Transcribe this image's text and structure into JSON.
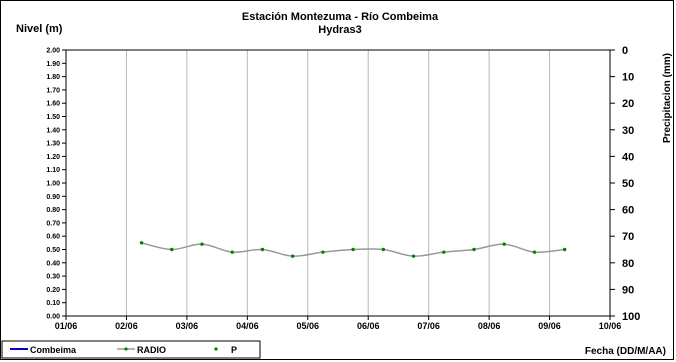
{
  "chart_data": {
    "type": "line",
    "title": "Estación Montezuma - Río Combeima",
    "subtitle": "Hydras3",
    "ylabel": "Nivel (m)",
    "y2label": "Precipitacion (mm)",
    "xlabel": "Fecha (DD/M/AA)",
    "ylim": [
      0.0,
      2.0
    ],
    "y2lim": [
      0,
      100
    ],
    "y2_inverted": true,
    "grid": true,
    "x_ticks": [
      "01/06",
      "02/06",
      "03/06",
      "04/06",
      "05/06",
      "06/06",
      "07/06",
      "08/06",
      "09/06",
      "10/06"
    ],
    "y_ticks": [
      "0.00",
      "0.10",
      "0.20",
      "0.30",
      "0.40",
      "0.50",
      "0.60",
      "0.70",
      "0.80",
      "0.90",
      "1.00",
      "1.10",
      "1.20",
      "1.30",
      "1.40",
      "1.50",
      "1.60",
      "1.70",
      "1.80",
      "1.90",
      "2.00"
    ],
    "y2_ticks": [
      "0",
      "10",
      "20",
      "30",
      "40",
      "50",
      "60",
      "70",
      "80",
      "90",
      "100"
    ],
    "legend": {
      "position": "bottom-left",
      "entries": [
        "Combeima",
        "RADIO",
        "P"
      ]
    },
    "series": [
      {
        "name": "Combeima",
        "color": "#0000cc",
        "x": [],
        "values": []
      },
      {
        "name": "RADIO",
        "color": "#999999",
        "x": [
          2.25,
          2.75,
          3.25,
          3.75,
          4.25,
          4.75,
          5.25,
          5.75,
          6.25,
          6.75,
          7.25,
          7.75,
          8.25,
          8.75,
          9.25
        ],
        "values": [
          0.55,
          0.5,
          0.54,
          0.48,
          0.5,
          0.45,
          0.48,
          0.5,
          0.5,
          0.45,
          0.48,
          0.5,
          0.54,
          0.48,
          0.5
        ]
      },
      {
        "name": "P",
        "color": "#008000",
        "x": [],
        "values": []
      }
    ]
  }
}
